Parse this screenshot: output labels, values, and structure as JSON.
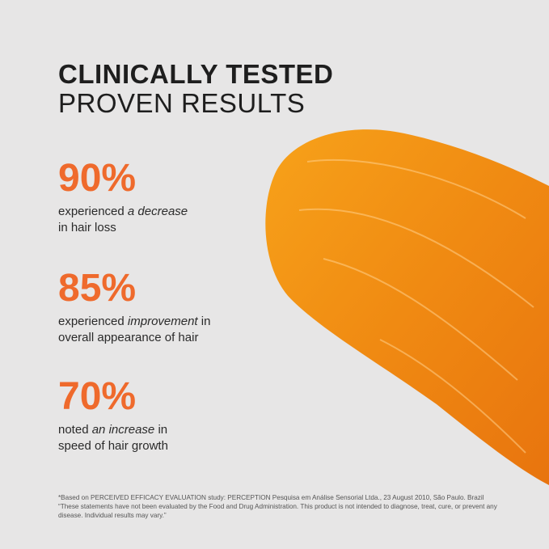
{
  "title": {
    "line1": "CLINICALLY TESTED",
    "line2": "PROVEN RESULTS"
  },
  "stats": [
    {
      "value": "90%",
      "pre": "experienced ",
      "em": "a decrease",
      "post": "",
      "line2": "in hair loss"
    },
    {
      "value": "85%",
      "pre": "experienced ",
      "em": "improvement",
      "post": " in",
      "line2": "overall appearance of hair"
    },
    {
      "value": "70%",
      "pre": "noted ",
      "em": "an increase",
      "post": " in",
      "line2": "speed of hair growth"
    }
  ],
  "footnote": {
    "line1": "*Based on PERCEIVED EFFICACY EVALUATION study: PERCEPTION Pesquisa em Análise Sensorial Ltda., 23 August 2010, São Paulo. Brazil",
    "line2": "“These statements have not been evaluated by the Food and Drug Administration. This product is not intended to diagnose, treat, cure, or prevent any disease. Individual results may vary.”"
  },
  "colors": {
    "accent": "#ef6a2c",
    "background": "#e7e6e6",
    "text": "#1e1e1e"
  }
}
